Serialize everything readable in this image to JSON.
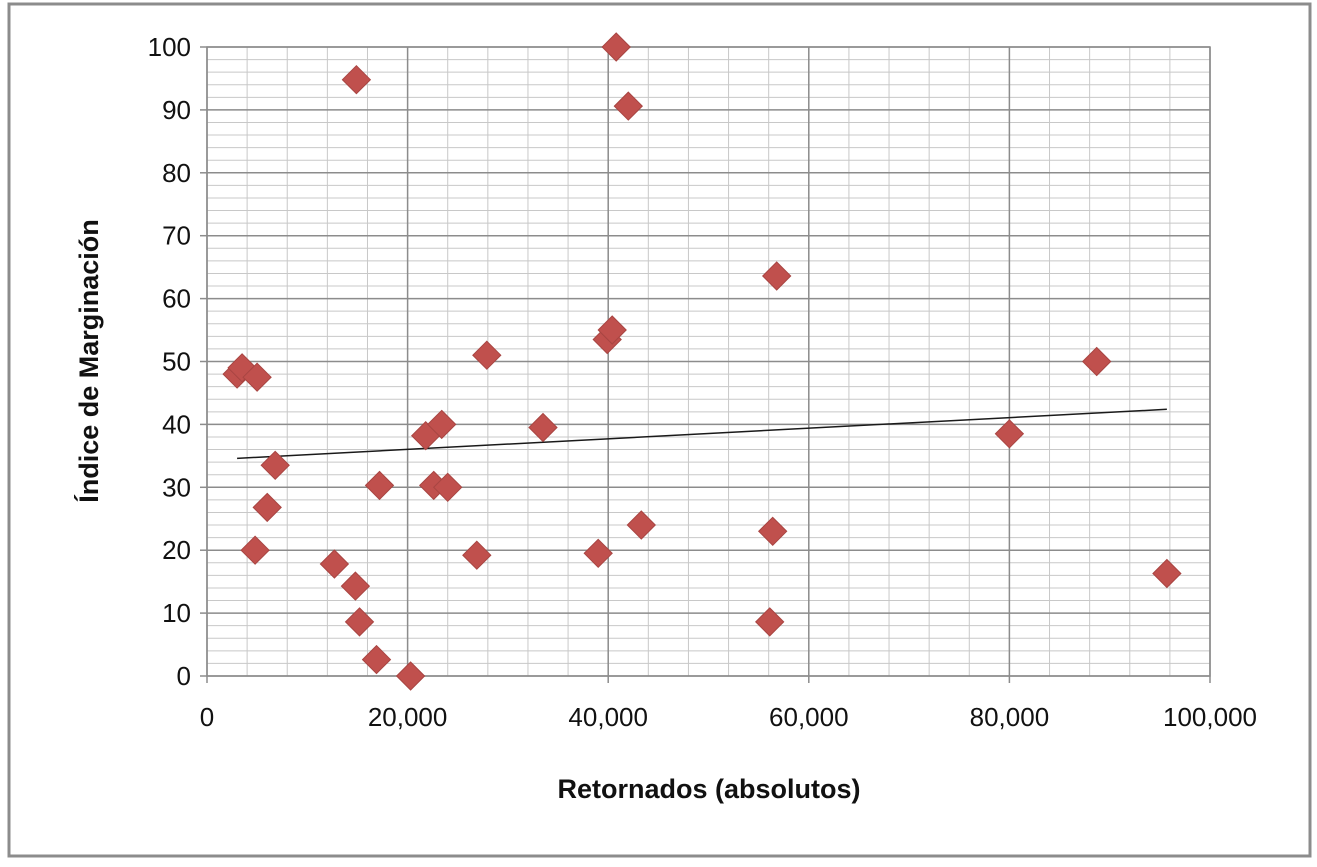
{
  "chart_data": {
    "type": "scatter",
    "title": "",
    "xlabel": "Retornados (absolutos)",
    "ylabel": "Índice de Marginación",
    "xlim": [
      0,
      100000
    ],
    "ylim": [
      0,
      100
    ],
    "x_ticks": [
      0,
      20000,
      40000,
      60000,
      80000,
      100000
    ],
    "x_tick_labels": [
      "0",
      "20,000",
      "40,000",
      "60,000",
      "80,000",
      "100,000"
    ],
    "y_ticks": [
      0,
      10,
      20,
      30,
      40,
      50,
      60,
      70,
      80,
      90,
      100
    ],
    "y_tick_labels": [
      "0",
      "10",
      "20",
      "30",
      "40",
      "50",
      "60",
      "70",
      "80",
      "90",
      "100"
    ],
    "grid": "major and minor gridlines on both axes",
    "legend": "none",
    "marker": "diamond",
    "colors": {
      "marker": "#c0504d",
      "trendline": "#1a1a1a",
      "grid_major": "#8c8c8c",
      "grid_minor": "#c8c8c8",
      "frame": "#8c8c8c"
    },
    "series": [
      {
        "points": [
          {
            "x": 3000,
            "y": 48
          },
          {
            "x": 3500,
            "y": 49
          },
          {
            "x": 5000,
            "y": 47.5
          },
          {
            "x": 4800,
            "y": 20
          },
          {
            "x": 6000,
            "y": 26.8
          },
          {
            "x": 6800,
            "y": 33.5
          },
          {
            "x": 12700,
            "y": 17.8
          },
          {
            "x": 14800,
            "y": 14.3
          },
          {
            "x": 14900,
            "y": 94.8
          },
          {
            "x": 15200,
            "y": 8.6
          },
          {
            "x": 16900,
            "y": 2.6
          },
          {
            "x": 17200,
            "y": 30.3
          },
          {
            "x": 20300,
            "y": 0
          },
          {
            "x": 21800,
            "y": 38.2
          },
          {
            "x": 22600,
            "y": 30.3
          },
          {
            "x": 23400,
            "y": 40
          },
          {
            "x": 24000,
            "y": 30
          },
          {
            "x": 26900,
            "y": 19.2
          },
          {
            "x": 27900,
            "y": 51
          },
          {
            "x": 33500,
            "y": 39.5
          },
          {
            "x": 39000,
            "y": 19.5
          },
          {
            "x": 39900,
            "y": 53.5
          },
          {
            "x": 40400,
            "y": 55
          },
          {
            "x": 40800,
            "y": 100
          },
          {
            "x": 42000,
            "y": 90.6
          },
          {
            "x": 43300,
            "y": 24
          },
          {
            "x": 56100,
            "y": 8.6
          },
          {
            "x": 56400,
            "y": 23
          },
          {
            "x": 56800,
            "y": 63.6
          },
          {
            "x": 80000,
            "y": 38.5
          },
          {
            "x": 88700,
            "y": 50
          },
          {
            "x": 95700,
            "y": 16.3
          }
        ]
      }
    ],
    "trendline": {
      "type": "linear",
      "x_start": 3000,
      "y_start": 34.6,
      "x_end": 95700,
      "y_end": 42.4
    }
  }
}
